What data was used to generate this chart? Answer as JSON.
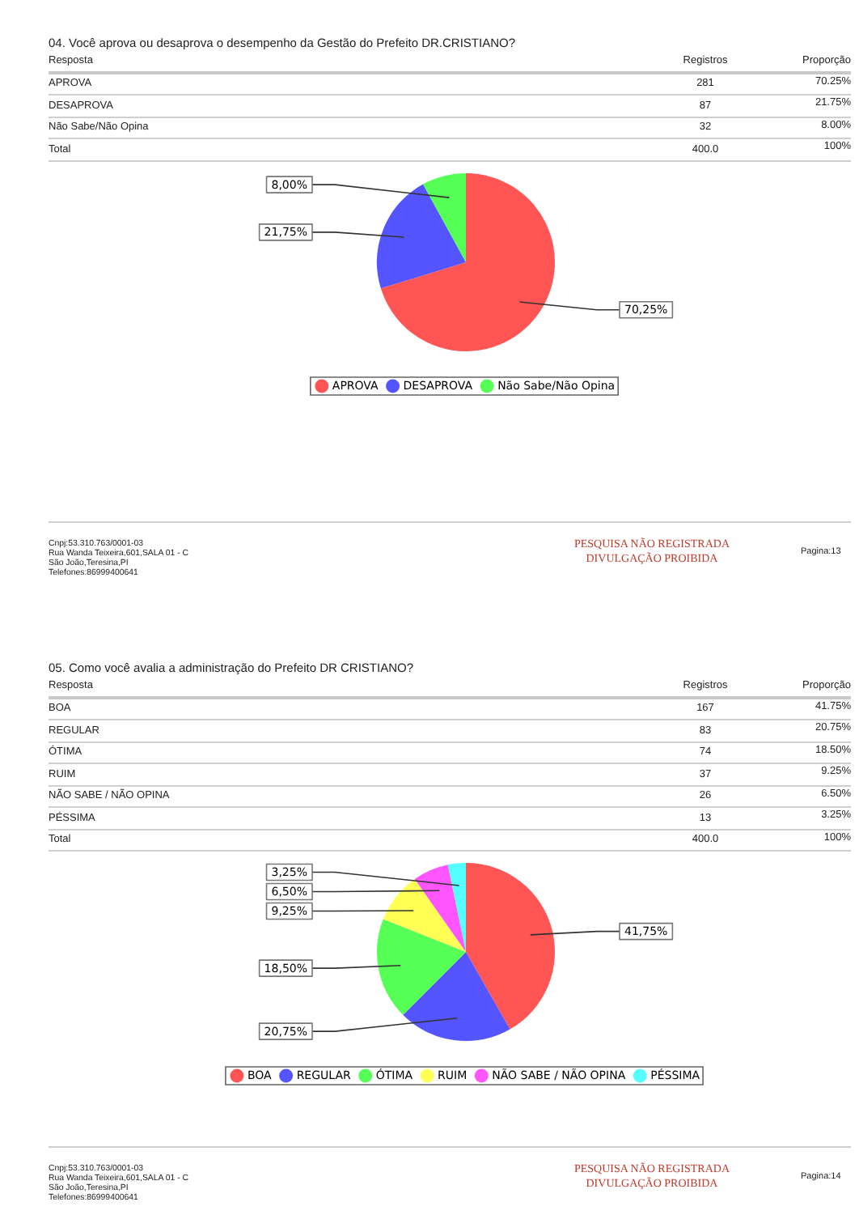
{
  "chart_data": [
    {
      "type": "pie",
      "title": "04. Você aprova ou desaprova o desempenho da Gestão do Prefeito DR.CRISTIANO?",
      "categories": [
        "APROVA",
        "DESAPROVA",
        "Não Sabe/Não Opina"
      ],
      "values": [
        70.25,
        21.75,
        8.0
      ],
      "colors": [
        "#ff5555",
        "#5555ff",
        "#55ff55"
      ],
      "value_labels": [
        "70,25%",
        "21,75%",
        "8,00%"
      ],
      "legend": "bottom",
      "annotations": [
        "Resposta",
        "Registros",
        "Proporção",
        "281",
        "70.25%",
        "87",
        "21.75%",
        "32",
        "8.00%",
        "Total",
        "400.0",
        "100%",
        "Cnpj:53.310.763/0001-03",
        "Rua Wanda Teixeira,601,SALA 01 - C",
        "São João,Teresina,PI",
        "Telefones:86999400641",
        "PESQUISA NÃO REGISTRADA",
        "DIVULGAÇÃO PROIBIDA",
        "Pagina:13"
      ]
    },
    {
      "type": "pie",
      "title": "05. Como você avalia a administração do Prefeito DR CRISTIANO?",
      "categories": [
        "BOA",
        "REGULAR",
        "ÓTIMA",
        "RUIM",
        "NÃO SABE / NÃO OPINA",
        "PÉSSIMA"
      ],
      "values": [
        41.75,
        20.75,
        18.5,
        9.25,
        6.5,
        3.25
      ],
      "colors": [
        "#ff5555",
        "#5555ff",
        "#55ff55",
        "#ffff55",
        "#ff55ff",
        "#55ffff"
      ],
      "value_labels": [
        "41,75%",
        "20,75%",
        "18,50%",
        "9,25%",
        "6,50%",
        "3,25%"
      ],
      "legend": "bottom",
      "annotations": [
        "Resposta",
        "Registros",
        "Proporção",
        "167",
        "41.75%",
        "83",
        "20.75%",
        "74",
        "18.50%",
        "37",
        "9.25%",
        "26",
        "6.50%",
        "13",
        "3.25%",
        "Total",
        "400.0",
        "100%",
        "Cnpj:53.310.763/0001-03",
        "Rua Wanda Teixeira,601,SALA 01 - C",
        "São João,Teresina,PI",
        "Telefones:86999400641",
        "PESQUISA NÃO REGISTRADA",
        "DIVULGAÇÃO PROIBIDA",
        "Pagina:14"
      ]
    }
  ]
}
